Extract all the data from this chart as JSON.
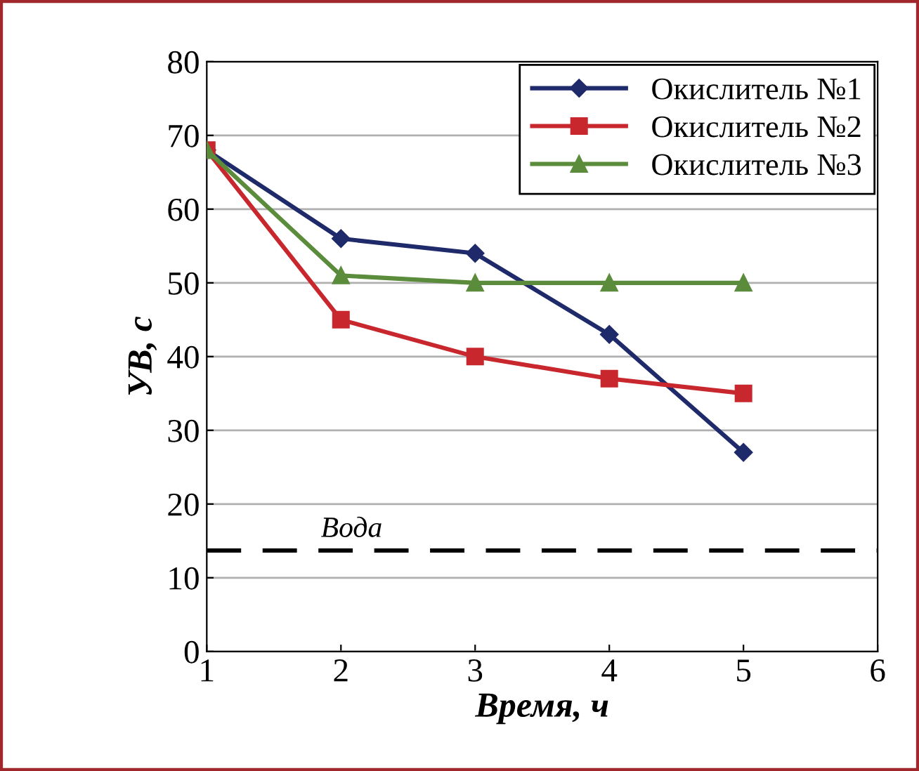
{
  "chart_data": {
    "type": "line",
    "xlabel": "Время, ч",
    "ylabel": "УВ, с",
    "x": [
      1,
      2,
      3,
      4,
      5
    ],
    "series": [
      {
        "name": "Окислитель №1",
        "color": "#1f2a6b",
        "marker": "diamond",
        "values": [
          68,
          56,
          54,
          43,
          27
        ]
      },
      {
        "name": "Окислитель №2",
        "color": "#c8282d",
        "marker": "square",
        "values": [
          68,
          45,
          40,
          37,
          35
        ]
      },
      {
        "name": "Окислитель №3",
        "color": "#5b8c3c",
        "marker": "triangle",
        "values": [
          68,
          51,
          50,
          50,
          50
        ]
      }
    ],
    "xlim": [
      1,
      6
    ],
    "xticks": [
      1,
      2,
      3,
      4,
      5,
      6
    ],
    "ylim": [
      0,
      80
    ],
    "yticks": [
      0,
      10,
      20,
      30,
      40,
      50,
      60,
      70,
      80
    ],
    "grid": "y",
    "legend": "top right",
    "line_style": "solid",
    "ref_lines": [
      {
        "axis": "y",
        "value": 13.7,
        "label": "Вода",
        "color": "#000000",
        "line_style": "dashed"
      }
    ]
  }
}
